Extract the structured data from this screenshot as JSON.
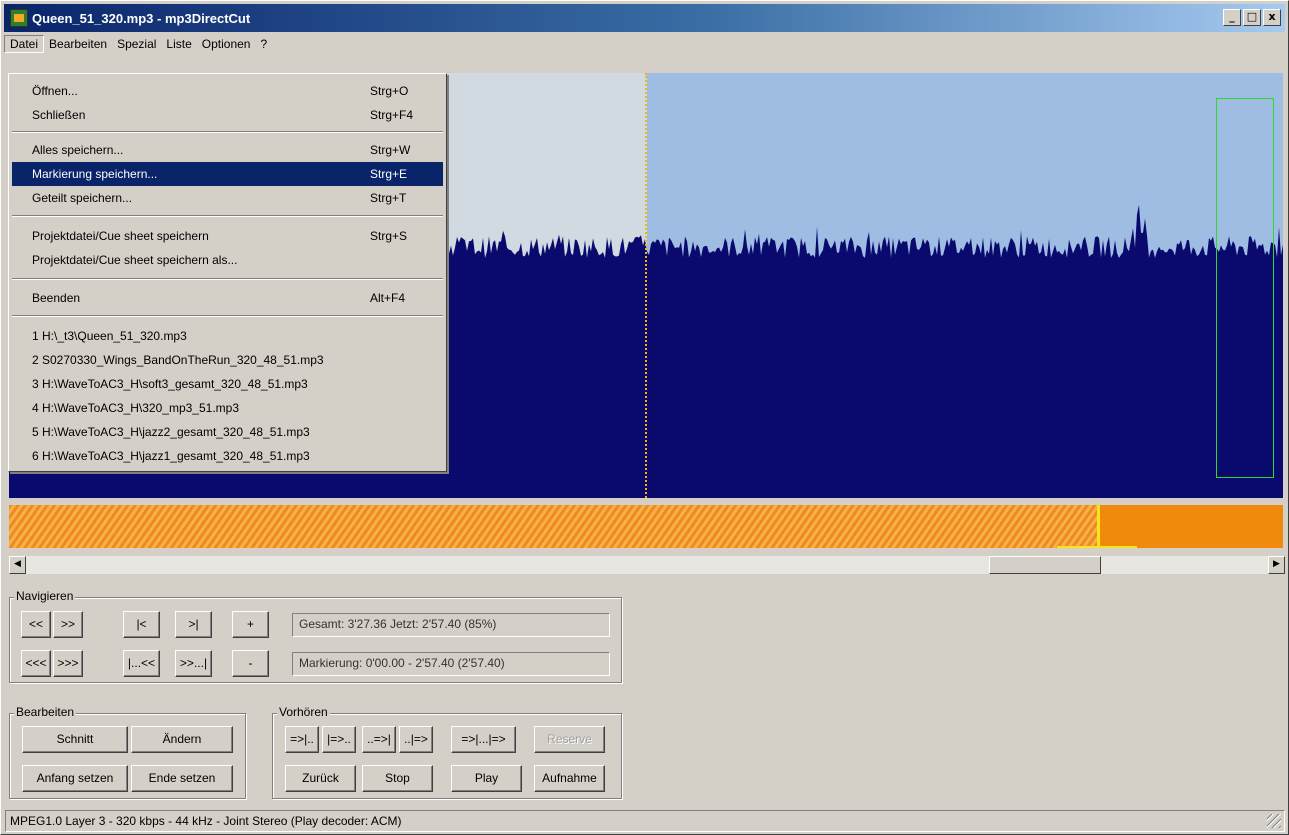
{
  "title": "Queen_51_320.mp3 - mp3DirectCut",
  "window_buttons": {
    "minimize": "_",
    "maximize": "□",
    "close": "x"
  },
  "menubar": [
    "Datei",
    "Bearbeiten",
    "Spezial",
    "Liste",
    "Optionen",
    "?"
  ],
  "datei_menu": {
    "items": [
      {
        "label": "Öffnen...",
        "shortcut": "Strg+O"
      },
      {
        "label": "Schließen",
        "shortcut": "Strg+F4"
      },
      {
        "label": "Alles speichern...",
        "shortcut": "Strg+W"
      },
      {
        "label": "Markierung speichern...",
        "shortcut": "Strg+E",
        "selected": true
      },
      {
        "label": "Geteilt speichern...",
        "shortcut": "Strg+T"
      },
      {
        "label": "Projektdatei/Cue sheet speichern",
        "shortcut": "Strg+S"
      },
      {
        "label": "Projektdatei/Cue sheet speichern als...",
        "shortcut": ""
      },
      {
        "label": "Beenden",
        "shortcut": "Alt+F4"
      }
    ],
    "recent_files": [
      "1 H:\\_t3\\Queen_51_320.mp3",
      "2 S0270330_Wings_BandOnTheRun_320_48_51.mp3",
      "3 H:\\WaveToAC3_H\\soft3_gesamt_320_48_51.mp3",
      "4 H:\\WaveToAC3_H\\320_mp3_51.mp3",
      "5 H:\\WaveToAC3_H\\jazz2_gesamt_320_48_51.mp3",
      "6 H:\\WaveToAC3_H\\jazz1_gesamt_320_48_51.mp3"
    ]
  },
  "navigieren": {
    "label": "Navigieren",
    "row1": [
      "<<",
      ">>",
      "|<",
      ">|",
      "+"
    ],
    "row2": [
      "<<<",
      ">>>",
      "|...<<",
      ">>...|",
      "-"
    ],
    "gesamt": "Gesamt: 3'27.36   Jetzt: 2'57.40   (85%)",
    "markierung": "Markierung: 0'00.00 - 2'57.40 (2'57.40)"
  },
  "bearbeiten": {
    "label": "Bearbeiten",
    "schnitt": "Schnitt",
    "aendern": "Ändern",
    "anfang_setzen": "Anfang setzen",
    "ende_setzen": "Ende setzen"
  },
  "vorhoeren": {
    "label": "Vorhören",
    "row1": [
      "=>|..",
      "|=>..",
      "..=>|",
      "..|=>",
      "=>|...|=>",
      "Reserve"
    ],
    "zurueck": "Zurück",
    "stop": "Stop",
    "play": "Play",
    "aufnahme": "Aufnahme"
  },
  "status": "MPEG1.0 Layer 3 - 320 kbps - 44 kHz - Joint Stereo   (Play decoder: ACM)",
  "colors": {
    "waveform": "#0a0a6e",
    "waveform_background": "#9fbce3",
    "played_background": "#d0dae0",
    "cursor": "#f5b500",
    "overview": "#f08a1c",
    "selection": "#0a246a"
  }
}
